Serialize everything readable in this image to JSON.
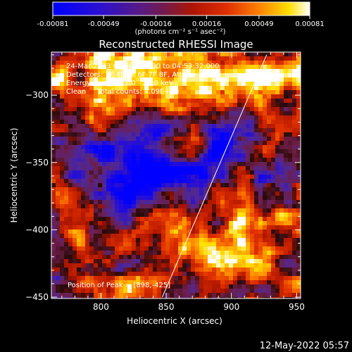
{
  "colorbar": {
    "tick_labels": [
      "-0.00081",
      "-0.00049",
      "-0.00016",
      "0.00016",
      "0.00049",
      "0.00081"
    ],
    "tick_values": [
      -0.00081,
      -0.00049,
      -0.00016,
      0.00016,
      0.00049,
      0.00081
    ],
    "range": [
      -0.00081,
      0.00081
    ],
    "units_label": "(photons cm⁻² s⁻¹ asec⁻²)",
    "colors": [
      "#0000ff",
      "#3a1aa8",
      "#7a1a40",
      "#d02000",
      "#ff7000",
      "#ffd000",
      "#ffffff"
    ]
  },
  "chart_data": {
    "type": "heatmap",
    "title": "Reconstructed RHESSI Image",
    "xlabel": "Heliocentric X (arcsec)",
    "ylabel": "Heliocentric Y (arcsec)",
    "xlim": [
      762,
      953
    ],
    "ylim": [
      -451,
      -268
    ],
    "xticks": [
      800,
      850,
      900,
      950
    ],
    "yticks": [
      -300,
      -350,
      -400,
      -450
    ],
    "xtick_labels": [
      "800",
      "850",
      "900",
      "950"
    ],
    "ytick_labels": [
      "−300",
      "−350",
      "−400",
      "−450"
    ],
    "annotations": [
      "24-Mar-2013 04:50:48.000 to 04:53:32.000",
      "Detectors: 3F 4F 5F 6F 7F 8F, Att 0",
      "Energy Range: 12.0 - 25.0 keV",
      "Clean     Total counts: 4.09E+03"
    ],
    "peak_label": "Position of Peak = [898,-425]",
    "peak": [
      898,
      -425
    ],
    "limb_line": {
      "points": [
        [
          847,
          -450
        ],
        [
          927,
          -270
        ]
      ]
    }
  },
  "timestamp": "12-May-2022 05:57"
}
